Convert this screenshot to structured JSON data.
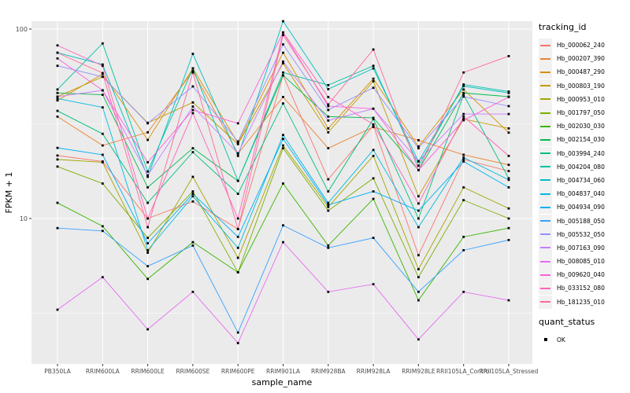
{
  "figure": {
    "legend": {
      "title": "tracking_id",
      "quant_title": "quant_status",
      "quant_ok_label": "OK"
    }
  },
  "colors": {
    "panel_bg": "#EBEBEB",
    "grid_major": "#FFFFFF",
    "grid_minor": "#FFFFFF",
    "tick_text": "#4D4D4D",
    "axis_title": "#000000",
    "legend_key_bg": "#F1F1F1",
    "point": "#000000"
  },
  "chart_data": {
    "type": "line",
    "title": "",
    "xlabel": "sample_name",
    "ylabel": "FPKM + 1",
    "y_scale": "log10",
    "ylim": [
      2,
      120
    ],
    "y_major_ticks": [
      100,
      10
    ],
    "y_minor_ticks": [
      31.62,
      3.162
    ],
    "grid": true,
    "legend_position": "right",
    "point_marker": "black-square",
    "categories": [
      "PB350LA",
      "RRIM600LA",
      "RRIM600LE",
      "RRIM600SE",
      "RRIM600PE",
      "RRIM901LA",
      "RRIM928BA",
      "RRIM928LA",
      "RRIM928LE",
      "RRII105LA_Control",
      "RRII105LA_Stressed"
    ],
    "series": [
      {
        "name": "Hb_000062_240",
        "color": "#F8766D",
        "values": [
          21.5,
          20.0,
          10.0,
          12.3,
          8.8,
          57.0,
          16.1,
          31.0,
          6.4,
          20.5,
          17.8
        ]
      },
      {
        "name": "Hb_000207_390",
        "color": "#EA8331",
        "values": [
          34.5,
          24.3,
          28.5,
          60.0,
          22.0,
          43.8,
          23.5,
          30.4,
          25.9,
          21.7,
          19.2
        ]
      },
      {
        "name": "Hb_000487_290",
        "color": "#D89000",
        "values": [
          42.0,
          58.0,
          26.0,
          62.0,
          25.0,
          75.0,
          29.9,
          54.7,
          24.0,
          48.0,
          28.4
        ]
      },
      {
        "name": "Hb_000803_190",
        "color": "#C09B00",
        "values": [
          44.0,
          56.0,
          32.0,
          41.0,
          24.7,
          66.0,
          28.5,
          53.0,
          13.1,
          33.5,
          29.9
        ]
      },
      {
        "name": "Hb_000953_010",
        "color": "#A3A500",
        "values": [
          20.5,
          19.8,
          6.6,
          16.6,
          6.2,
          24.3,
          11.5,
          21.4,
          5.4,
          14.6,
          11.3
        ]
      },
      {
        "name": "Hb_001797_050",
        "color": "#7CAE00",
        "values": [
          18.8,
          15.3,
          7.9,
          13.9,
          5.2,
          23.5,
          11.0,
          16.3,
          4.9,
          12.5,
          10.0
        ]
      },
      {
        "name": "Hb_002030_030",
        "color": "#39B600",
        "values": [
          12.1,
          9.1,
          4.8,
          7.5,
          5.2,
          15.3,
          7.2,
          12.7,
          3.7,
          8.0,
          8.9
        ]
      },
      {
        "name": "Hb_002154_030",
        "color": "#00BB4E",
        "values": [
          46.0,
          45.0,
          14.6,
          23.5,
          15.8,
          57.0,
          34.5,
          34.0,
          18.0,
          46.0,
          44.0
        ]
      },
      {
        "name": "Hb_003994_240",
        "color": "#00BF7D",
        "values": [
          37.0,
          28.0,
          12.1,
          22.4,
          13.5,
          40.5,
          13.9,
          33.5,
          10.0,
          45.0,
          16.3
        ]
      },
      {
        "name": "Hb_004204_080",
        "color": "#00C1A3",
        "values": [
          48.0,
          84.0,
          17.7,
          62.0,
          15.8,
          59.0,
          50.6,
          64.0,
          19.0,
          51.0,
          46.8
        ]
      },
      {
        "name": "Hb_004734_060",
        "color": "#00BFC4",
        "values": [
          75.0,
          65.0,
          16.6,
          74.0,
          21.4,
          110.0,
          48.2,
          62.0,
          20.0,
          50.0,
          46.0
        ]
      },
      {
        "name": "Hb_004837_040",
        "color": "#00BAE0",
        "values": [
          43.0,
          38.6,
          6.8,
          13.1,
          7.0,
          27.6,
          12.1,
          23.0,
          9.0,
          21.0,
          16.0
        ]
      },
      {
        "name": "Hb_004934_090",
        "color": "#00B0F6",
        "values": [
          23.6,
          21.7,
          7.4,
          13.5,
          8.0,
          26.3,
          11.8,
          13.9,
          11.0,
          20.0,
          14.6
        ]
      },
      {
        "name": "Hb_005188_050",
        "color": "#35A2FF",
        "values": [
          8.9,
          8.6,
          5.6,
          7.2,
          2.5,
          9.2,
          7.0,
          7.9,
          4.1,
          6.8,
          7.7
        ]
      },
      {
        "name": "Hb_005532_050",
        "color": "#9590FF",
        "values": [
          64.0,
          56.0,
          31.8,
          49.8,
          25.5,
          83.0,
          37.4,
          49.0,
          23.5,
          44.0,
          39.2
        ]
      },
      {
        "name": "Hb_007163_090",
        "color": "#C77CFF",
        "values": [
          44.0,
          47.5,
          16.9,
          39.0,
          22.1,
          67.4,
          32.9,
          38.0,
          20.1,
          35.6,
          35.6
        ]
      },
      {
        "name": "Hb_008085_010",
        "color": "#E76BF3",
        "values": [
          3.3,
          4.9,
          2.6,
          4.1,
          2.2,
          7.5,
          4.1,
          4.5,
          2.3,
          4.1,
          3.7
        ]
      },
      {
        "name": "Hb_009620_040",
        "color": "#FA62DB",
        "values": [
          70.0,
          47.5,
          19.8,
          37.4,
          31.8,
          96.0,
          39.2,
          38.0,
          18.0,
          33.0,
          43.8
        ]
      },
      {
        "name": "Hb_033152_080",
        "color": "#FF62BC",
        "values": [
          82.0,
          64.0,
          10.0,
          36.0,
          10.0,
          96.0,
          43.8,
          31.4,
          12.0,
          34.5,
          21.4
        ]
      },
      {
        "name": "Hb_181235_010",
        "color": "#FF6A98",
        "values": [
          75.0,
          58.6,
          9.0,
          59.0,
          8.8,
          93.0,
          40.0,
          78.0,
          18.0,
          59.0,
          72.0
        ]
      }
    ]
  }
}
